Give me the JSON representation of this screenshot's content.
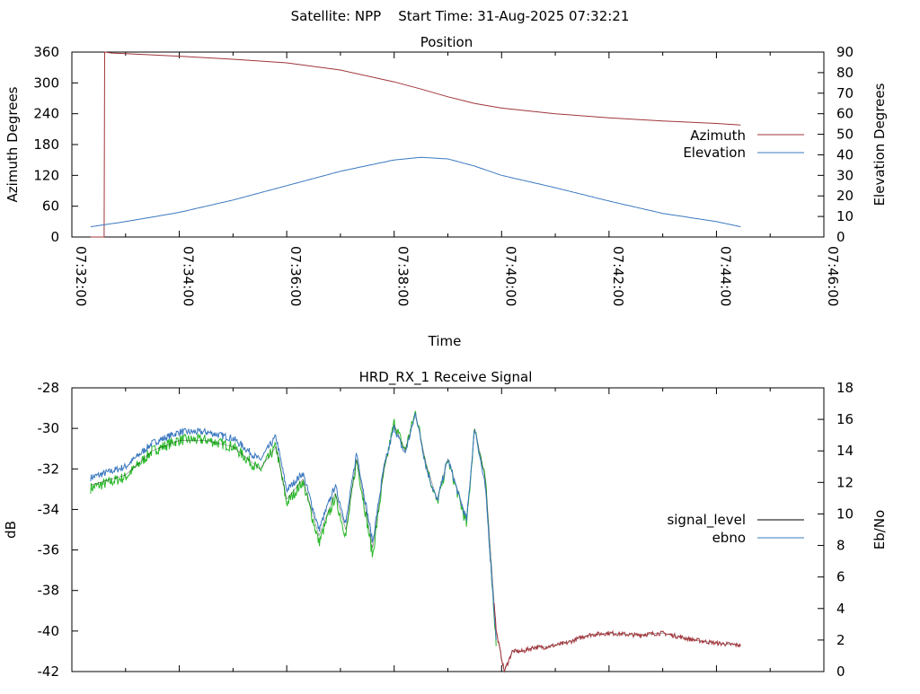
{
  "header": {
    "title": "Satellite: NPP    Start Time: 31-Aug-2025 07:32:21"
  },
  "colors": {
    "azimuth": "#a0353a",
    "elevation": "#3b78c0",
    "signal_level": "#000000",
    "ebno": "#3b78c0",
    "green_trace": "#2ab82a",
    "red_tail": "#a0353a"
  },
  "chart_data": [
    {
      "type": "line",
      "title": "Position",
      "xlabel": "Time",
      "ylabel": "Azimuth Degrees",
      "y2label": "Elevation Degrees",
      "xlim_minutes": [
        0,
        14
      ],
      "xticks": [
        {
          "m": 0,
          "label": "07:32:00"
        },
        {
          "m": 2,
          "label": "07:34:00"
        },
        {
          "m": 4,
          "label": "07:36:00"
        },
        {
          "m": 6,
          "label": "07:38:00"
        },
        {
          "m": 8,
          "label": "07:40:00"
        },
        {
          "m": 10,
          "label": "07:42:00"
        },
        {
          "m": 12,
          "label": "07:44:00"
        },
        {
          "m": 14,
          "label": "07:46:00"
        }
      ],
      "ylim": [
        0,
        360
      ],
      "yticks": [
        "0",
        "60",
        "120",
        "180",
        "240",
        "300",
        "360"
      ],
      "y2lim": [
        0,
        90
      ],
      "y2ticks": [
        "0",
        "10",
        "20",
        "30",
        "40",
        "50",
        "60",
        "70",
        "80",
        "90"
      ],
      "legend_position": "right",
      "series": [
        {
          "name": "Azimuth",
          "axis": "y",
          "x": [
            0.35,
            0.6,
            0.61,
            0.75,
            1.0,
            2.0,
            3.0,
            4.0,
            5.0,
            6.0,
            6.5,
            7.0,
            7.5,
            8.0,
            9.0,
            10.0,
            11.0,
            12.0,
            12.45
          ],
          "y": [
            0,
            0,
            360,
            358,
            357,
            352,
            346,
            339,
            325,
            302,
            288,
            273,
            260,
            251,
            240,
            232,
            226,
            221,
            218
          ]
        },
        {
          "name": "Elevation",
          "axis": "y2",
          "x": [
            0.35,
            1.0,
            2.0,
            3.0,
            4.0,
            5.0,
            6.0,
            6.5,
            7.0,
            7.5,
            8.0,
            9.0,
            10.0,
            11.0,
            12.0,
            12.45
          ],
          "y": [
            5,
            7.5,
            12,
            18,
            25,
            32,
            37.5,
            38.8,
            38,
            34.5,
            30,
            24,
            17.5,
            11.5,
            7.5,
            5
          ]
        }
      ]
    },
    {
      "type": "line",
      "title": "HRD_RX_1 Receive Signal",
      "ylabel": "dB",
      "y2label": "Eb/No",
      "xlim_minutes": [
        0,
        14
      ],
      "ylim": [
        -42,
        -28
      ],
      "yticks": [
        "-42",
        "-40",
        "-38",
        "-36",
        "-34",
        "-32",
        "-30",
        "-28"
      ],
      "y2lim": [
        0,
        18
      ],
      "y2ticks": [
        "0",
        "2",
        "4",
        "6",
        "8",
        "10",
        "12",
        "14",
        "16",
        "18"
      ],
      "legend_position": "right",
      "series": [
        {
          "name": "signal_level",
          "axis": "y",
          "x": [
            0.35,
            1.0,
            1.5,
            2.0,
            2.5,
            3.0,
            3.5,
            3.8,
            4.0,
            4.3,
            4.6,
            4.9,
            5.1,
            5.3,
            5.6,
            5.8,
            6.0,
            6.2,
            6.4,
            6.6,
            6.8,
            7.0,
            7.2,
            7.35,
            7.5,
            7.7,
            7.9,
            8.05,
            8.2,
            8.4,
            8.6,
            8.8,
            9.2,
            9.6,
            10.0,
            10.5,
            11.0,
            11.5,
            12.0,
            12.45
          ],
          "y": [
            -32.8,
            -32.3,
            -31.1,
            -30.6,
            -30.6,
            -30.9,
            -32.0,
            -30.9,
            -33.5,
            -32.5,
            -35.3,
            -33.2,
            -35.0,
            -31.5,
            -35.9,
            -32.2,
            -29.8,
            -31.1,
            -29.3,
            -31.8,
            -33.5,
            -31.5,
            -33.2,
            -34.5,
            -30.0,
            -32.5,
            -40.0,
            -42.0,
            -41.0,
            -41.0,
            -40.8,
            -40.8,
            -40.6,
            -40.2,
            -40.1,
            -40.2,
            -40.1,
            -40.4,
            -40.6,
            -40.7
          ]
        },
        {
          "name": "ebno",
          "axis": "y2",
          "x": [
            0.35,
            1.0,
            1.5,
            2.0,
            2.5,
            3.0,
            3.5,
            3.8,
            4.0,
            4.3,
            4.6,
            4.9,
            5.1,
            5.3,
            5.6,
            5.8,
            6.0,
            6.2,
            6.4,
            6.6,
            6.8,
            7.0,
            7.2,
            7.35,
            7.5,
            7.7,
            7.9
          ],
          "y": [
            12.3,
            13.0,
            14.5,
            15.2,
            15.2,
            14.8,
            13.4,
            14.9,
            11.5,
            12.6,
            9.0,
            11.8,
            9.4,
            13.9,
            8.2,
            12.8,
            15.5,
            13.8,
            16.4,
            12.9,
            10.8,
            13.5,
            11.2,
            9.6,
            15.5,
            11.6,
            2.0
          ]
        }
      ]
    }
  ]
}
